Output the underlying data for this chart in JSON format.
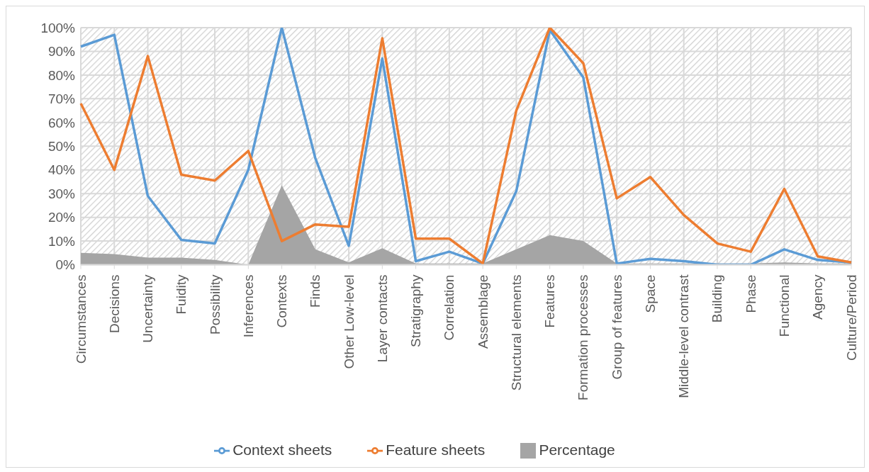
{
  "chart_data": {
    "type": "line",
    "categories": [
      "Circumstances",
      "Decisions",
      "Uncertainty",
      "Fuidity",
      "Possibility",
      "Inferences",
      "Contexts",
      "Finds",
      "Other Low-level",
      "Layer contacts",
      "Stratigraphy",
      "Correlation",
      "Assemblage",
      "Structural elements",
      "Features",
      "Formation processes",
      "Group of features",
      "Space",
      "Middle-level contrast",
      "Building",
      "Phase",
      "Functional",
      "Agency",
      "Culture/Period"
    ],
    "series": [
      {
        "name": "Percentage",
        "type": "area",
        "color": "#a5a5a5",
        "values": [
          5,
          4.5,
          3,
          3,
          2,
          0,
          33.5,
          6.5,
          1,
          7,
          0.5,
          0.5,
          0.5,
          6.5,
          12.5,
          10,
          0.5,
          0.5,
          0.5,
          0.5,
          0.5,
          1,
          0.5,
          0.5
        ]
      },
      {
        "name": "Context sheets",
        "color": "#5b9bd5",
        "values": [
          92,
          97,
          29,
          10.5,
          9,
          40,
          100,
          45,
          8,
          87,
          1.5,
          5.5,
          0.5,
          31,
          99,
          79,
          0.5,
          2.5,
          1.5,
          0,
          0,
          6.5,
          2,
          1
        ]
      },
      {
        "name": "Feature sheets",
        "color": "#ed7d31",
        "values": [
          68,
          40,
          88,
          38,
          35.5,
          48,
          10,
          17,
          16,
          95.5,
          11,
          11,
          0.5,
          65,
          100,
          85,
          28,
          37,
          21,
          9,
          5.5,
          32,
          3.5,
          1
        ]
      }
    ],
    "ylim": [
      0,
      100
    ],
    "yticks": [
      {
        "value": 0,
        "label": "0%"
      },
      {
        "value": 10,
        "label": "10%"
      },
      {
        "value": 20,
        "label": "20%"
      },
      {
        "value": 30,
        "label": "30%"
      },
      {
        "value": 40,
        "label": "40%"
      },
      {
        "value": 50,
        "label": "50%"
      },
      {
        "value": 60,
        "label": "60%"
      },
      {
        "value": 70,
        "label": "70%"
      },
      {
        "value": 80,
        "label": "80%"
      },
      {
        "value": 90,
        "label": "90%"
      },
      {
        "value": 100,
        "label": "100%"
      }
    ],
    "grid": true,
    "legend": "bottom",
    "marker": "none",
    "line_style": "solid"
  }
}
